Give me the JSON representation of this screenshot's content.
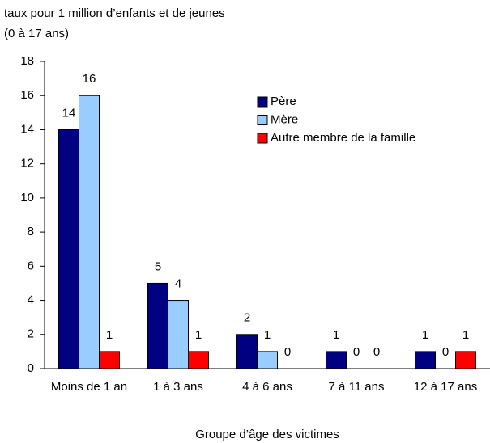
{
  "chart_data": {
    "type": "bar",
    "y_label": [
      "taux pour 1 million d’enfants et de jeunes",
      "(0 à 17 ans)"
    ],
    "x_label": "Groupe d’âge des victimes",
    "categories": [
      "Moins de 1 an",
      "1 à 3 ans",
      "4 à 6 ans",
      "7 à 11 ans",
      "12 à 17 ans"
    ],
    "series": [
      {
        "name": "Père",
        "color": "#000080",
        "values": [
          14,
          5,
          2,
          1,
          1
        ]
      },
      {
        "name": "Mère",
        "color": "#99ccff",
        "values": [
          16,
          4,
          1,
          0,
          0
        ]
      },
      {
        "name": "Autre membre de la famille",
        "color": "#ff0000",
        "values": [
          1,
          1,
          0,
          0,
          1
        ]
      }
    ],
    "ylim": [
      0,
      18
    ],
    "yticks": [
      0,
      2,
      4,
      6,
      8,
      10,
      12,
      14,
      16,
      18
    ],
    "grid": false
  }
}
